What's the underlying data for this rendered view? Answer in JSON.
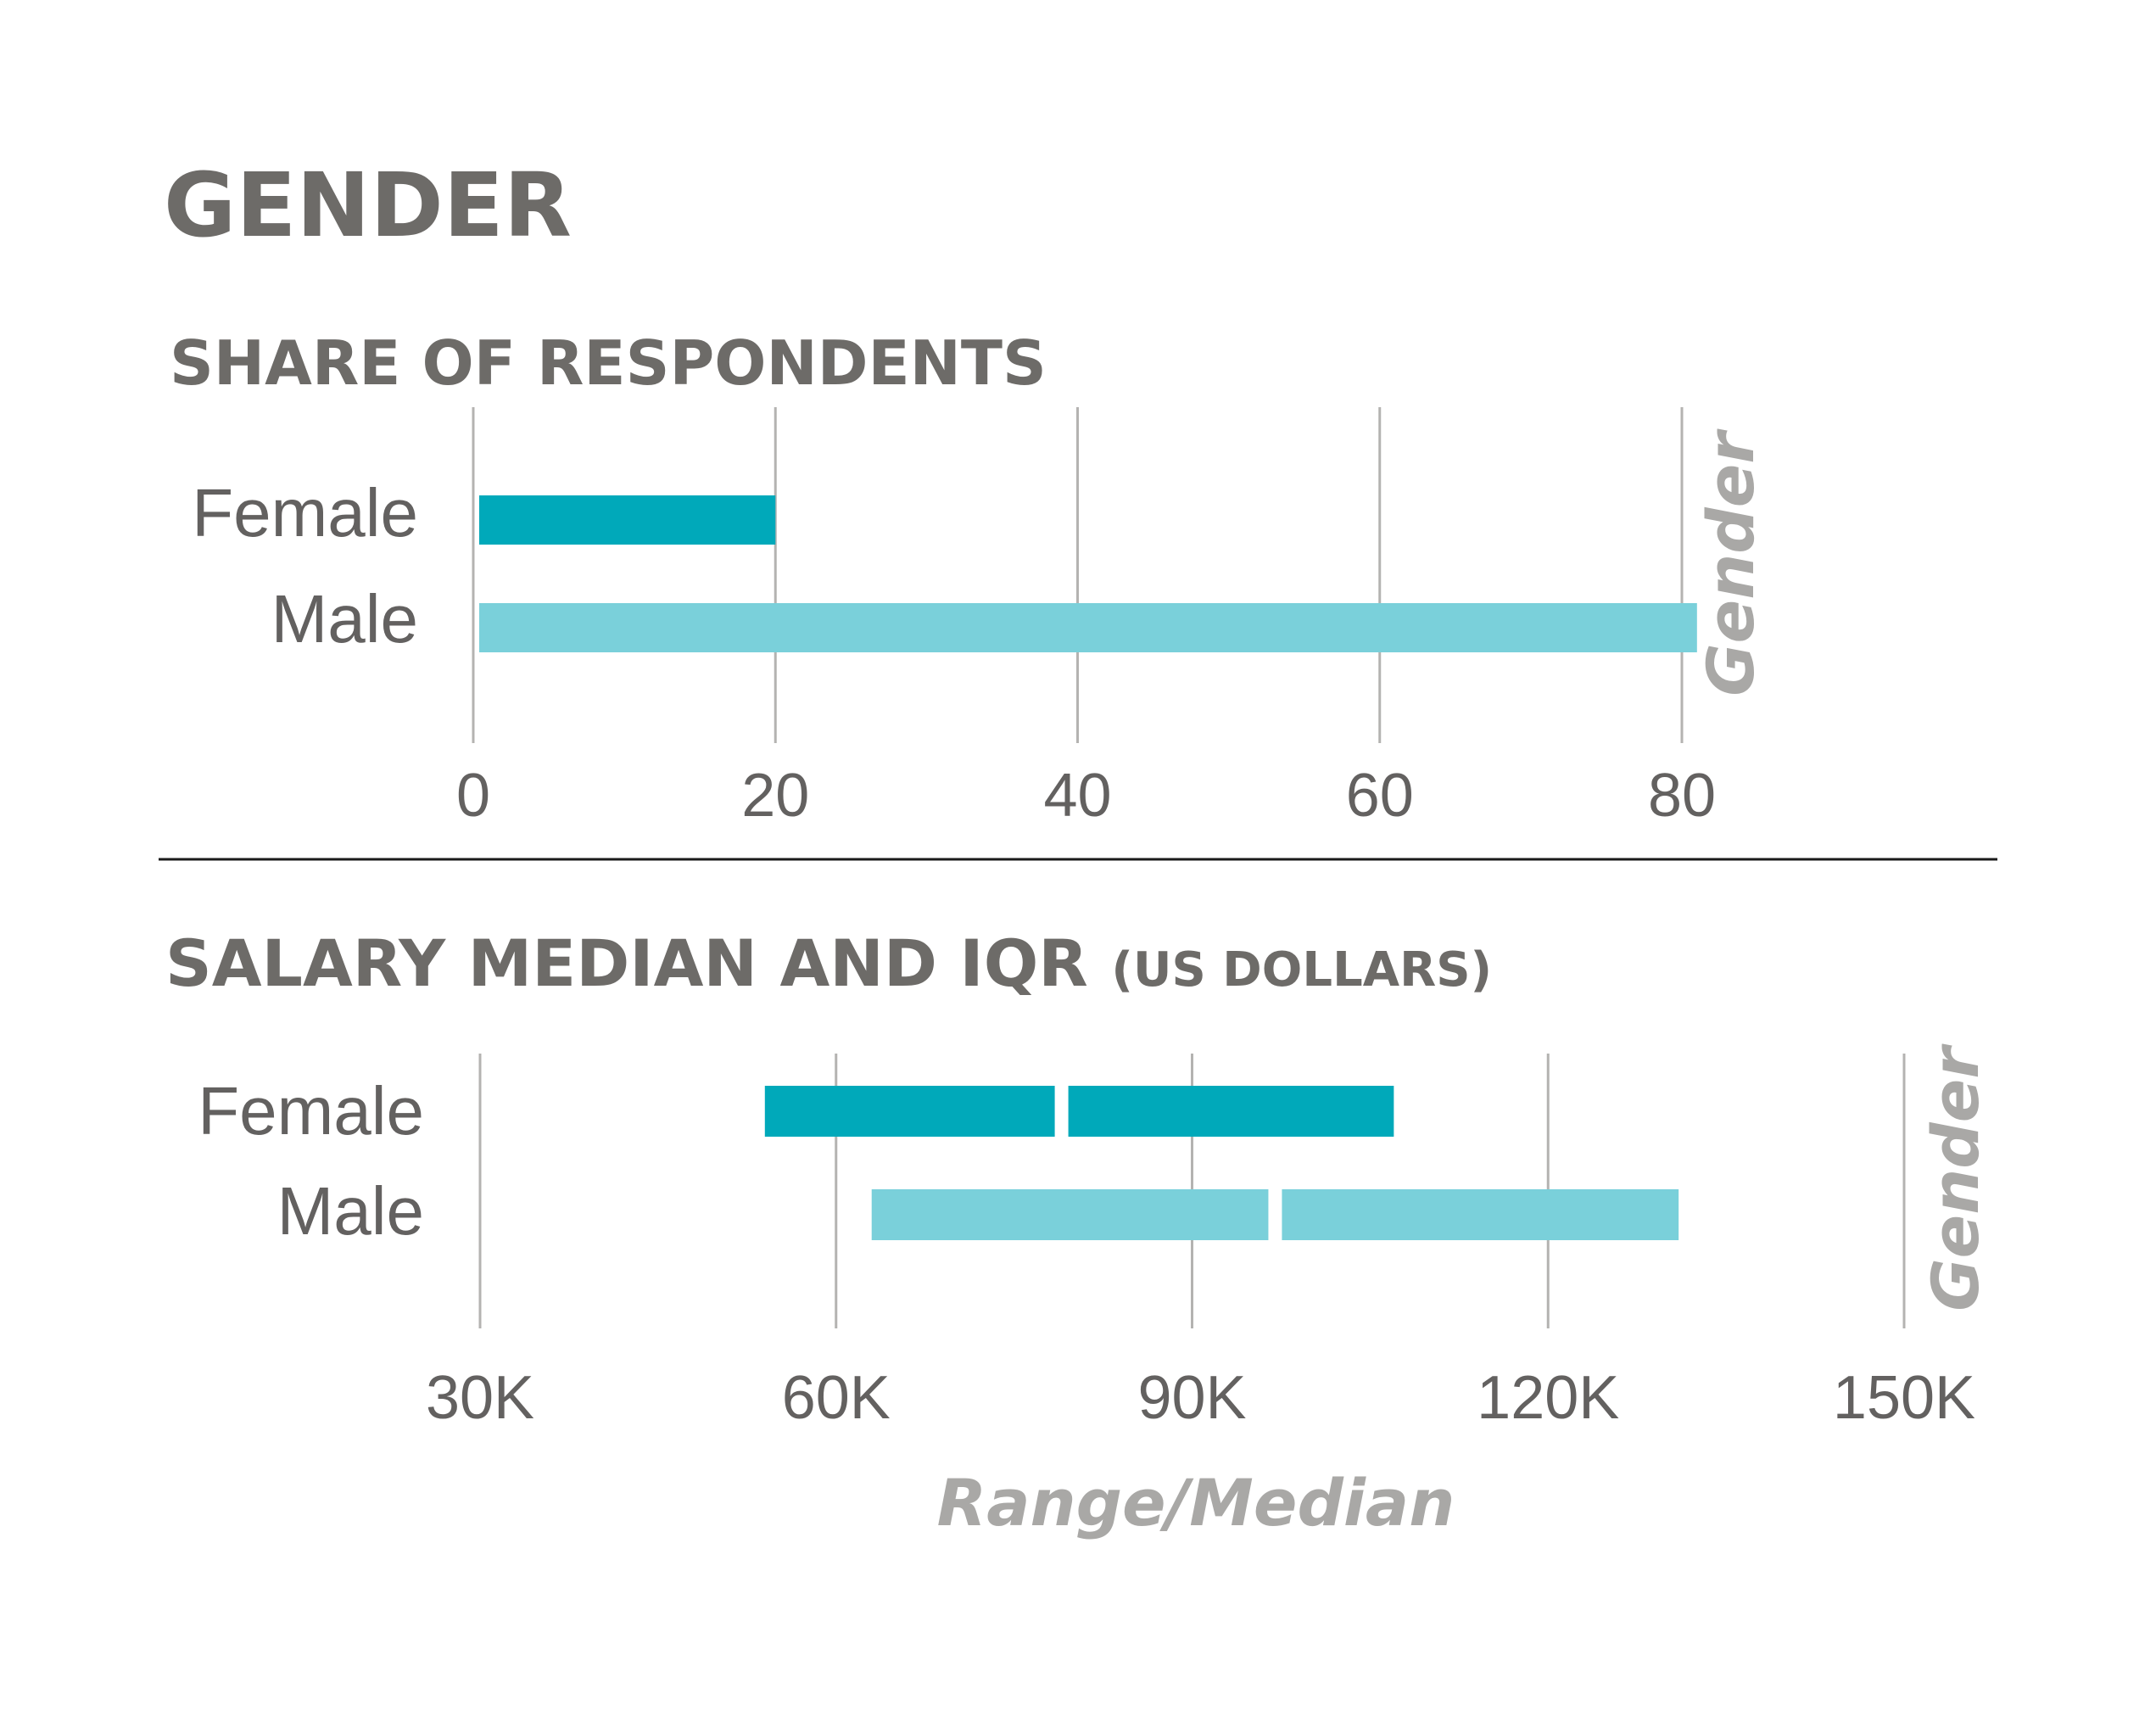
{
  "title": "GENDER",
  "colors": {
    "female": "#00a9ba",
    "male": "#7ad0da",
    "text": "#636160",
    "heading": "#6d6b68",
    "grid": "#b4b3b1",
    "axis_title": "#a9a8a6",
    "divider": "#1a1a1a"
  },
  "chart_data": [
    {
      "type": "bar",
      "title": "SHARE OF RESPONDENTS",
      "categories": [
        "Female",
        "Male"
      ],
      "values": [
        20,
        81
      ],
      "xlim": [
        0,
        80
      ],
      "xticks": [
        0,
        20,
        40,
        60,
        80
      ],
      "ylabel": "Gender",
      "grid": true
    },
    {
      "type": "bar",
      "title": "SALARY MEDIAN AND IQR",
      "title_suffix": "(US DOLLARS)",
      "categories": [
        "Female",
        "Male"
      ],
      "ranges": [
        {
          "name": "Female",
          "q1": 54000,
          "median": 79000,
          "q3": 107000
        },
        {
          "name": "Male",
          "q1": 63000,
          "median": 97000,
          "q3": 131000
        }
      ],
      "xlim": [
        30000,
        150000
      ],
      "xticks": [
        "30K",
        "60K",
        "90K",
        "120K",
        "150K"
      ],
      "xtick_values": [
        30000,
        60000,
        90000,
        120000,
        150000
      ],
      "xlabel": "Range/Median",
      "ylabel": "Gender",
      "grid": true
    }
  ]
}
